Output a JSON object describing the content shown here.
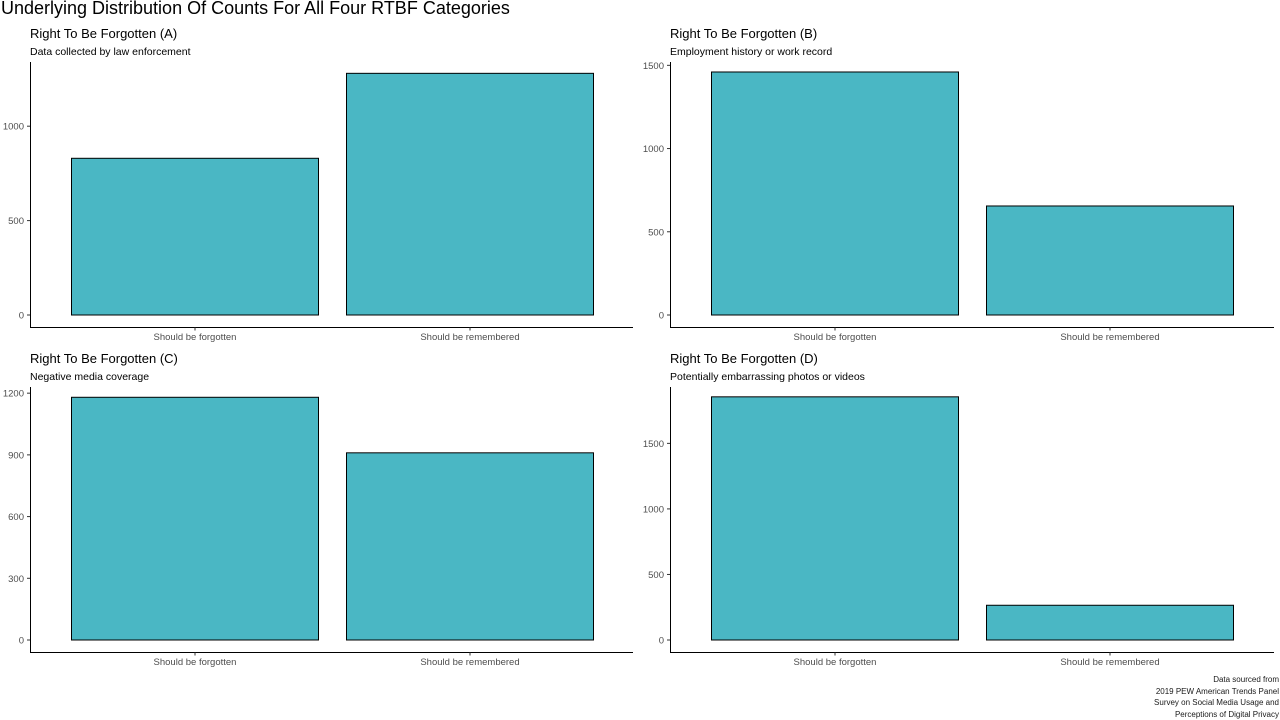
{
  "title": "Underlying Distribution Of Counts For All Four RTBF Categories",
  "colors": {
    "bar_fill": "#4AB7C4",
    "bar_stroke": "#000000",
    "axis": "#000000",
    "tick_label": "#4d4d4d"
  },
  "caption": [
    "Data sourced from",
    "2019 PEW American Trends Panel",
    "Survey on Social Media Usage and",
    "Perceptions of Digital Privacy"
  ],
  "chart_data": [
    {
      "type": "bar",
      "title": "Right To Be Forgotten (A)",
      "subtitle": "Data collected by law enforcement",
      "categories": [
        "Should be forgotten",
        "Should be remembered"
      ],
      "values": [
        830,
        1280
      ],
      "yticks": [
        0,
        500,
        1000
      ],
      "ylim": [
        0,
        1340
      ],
      "xlabel": "",
      "ylabel": "",
      "grid": false
    },
    {
      "type": "bar",
      "title": "Right To Be Forgotten (B)",
      "subtitle": "Employment history or work record",
      "categories": [
        "Should be forgotten",
        "Should be remembered"
      ],
      "values": [
        1460,
        655
      ],
      "yticks": [
        0,
        500,
        1000,
        1500
      ],
      "ylim": [
        0,
        1520
      ],
      "xlabel": "",
      "ylabel": "",
      "grid": false
    },
    {
      "type": "bar",
      "title": "Right To Be Forgotten (C)",
      "subtitle": "Negative media coverage",
      "categories": [
        "Should be forgotten",
        "Should be remembered"
      ],
      "values": [
        1180,
        910
      ],
      "yticks": [
        0,
        300,
        600,
        900,
        1200
      ],
      "ylim": [
        0,
        1230
      ],
      "xlabel": "",
      "ylabel": "",
      "grid": false
    },
    {
      "type": "bar",
      "title": "Right To Be Forgotten (D)",
      "subtitle": "Potentially embarrassing photos or videos",
      "categories": [
        "Should be forgotten",
        "Should be remembered"
      ],
      "values": [
        1855,
        265
      ],
      "yticks": [
        0,
        500,
        1000,
        1500
      ],
      "ylim": [
        0,
        1930
      ],
      "xlabel": "",
      "ylabel": "",
      "grid": false
    }
  ]
}
